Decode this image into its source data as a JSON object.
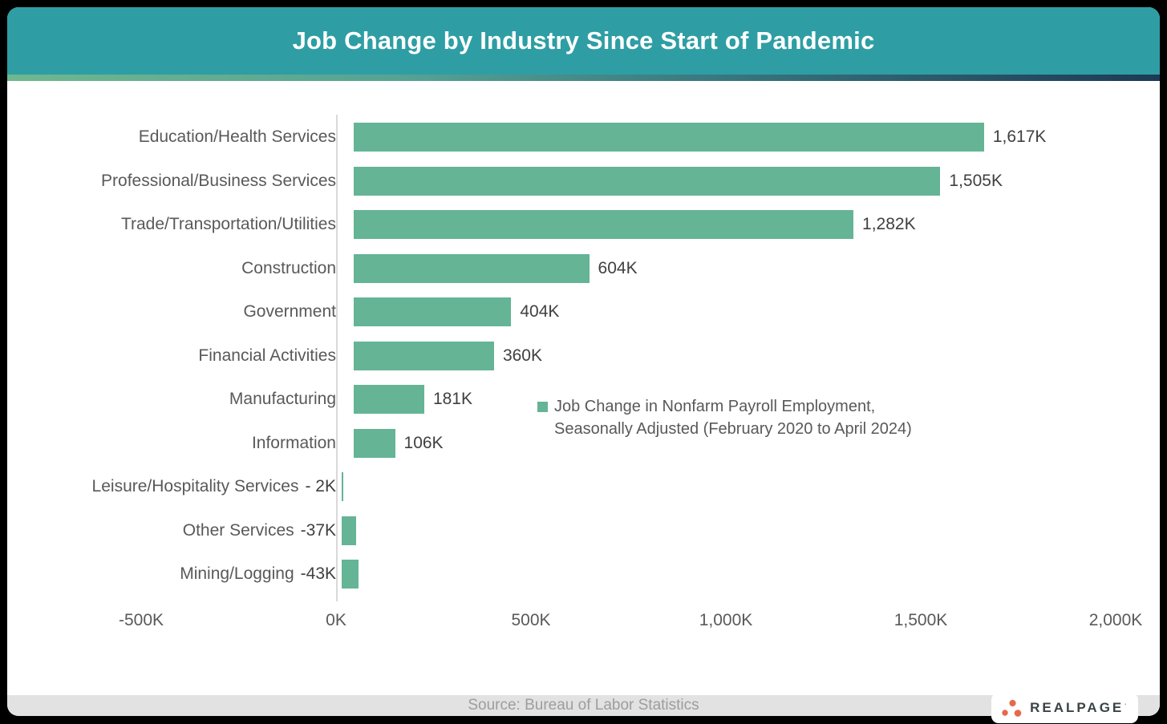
{
  "header": {
    "title": "Job Change by Industry Since Start of Pandemic"
  },
  "chart_data": {
    "type": "bar",
    "orientation": "horizontal",
    "title": "Job Change by Industry Since Start of Pandemic",
    "categories": [
      "Education/Health Services",
      "Professional/Business Services",
      "Trade/Transportation/Utilities",
      "Construction",
      "Government",
      "Financial Activities",
      "Manufacturing",
      "Information",
      "Leisure/Hospitality Services",
      "Other Services",
      "Mining/Logging"
    ],
    "values": [
      1617,
      1505,
      1282,
      604,
      404,
      360,
      181,
      106,
      -2,
      -37,
      -43
    ],
    "value_labels": [
      "1,617K",
      "1,505K",
      "1,282K",
      "604K",
      "404K",
      "360K",
      "181K",
      "106K",
      "- 2K",
      "-37K",
      "-43K"
    ],
    "units": "thousands of jobs (K)",
    "xlim": [
      -500,
      2000
    ],
    "x_ticks": [
      {
        "value": -500,
        "label": "-500K"
      },
      {
        "value": 0,
        "label": "0K"
      },
      {
        "value": 500,
        "label": "500K"
      },
      {
        "value": 1000,
        "label": "1,000K"
      },
      {
        "value": 1500,
        "label": "1,500K"
      },
      {
        "value": 2000,
        "label": "2,000K"
      }
    ],
    "legend_lines": [
      "Job Change in Nonfarm Payroll Employment,",
      "Seasonally Adjusted (February 2020 to April 2024)"
    ],
    "legend_position": "center-right",
    "grid": false,
    "bar_color": "#64B495",
    "axis_color": "#D9D9D9"
  },
  "footer": {
    "source": "Source: Bureau of Labor Statistics"
  },
  "logo": {
    "text": "REALPAGE",
    "mark": "'",
    "dot_color": "#E8684A",
    "text_color": "#3A4445"
  }
}
